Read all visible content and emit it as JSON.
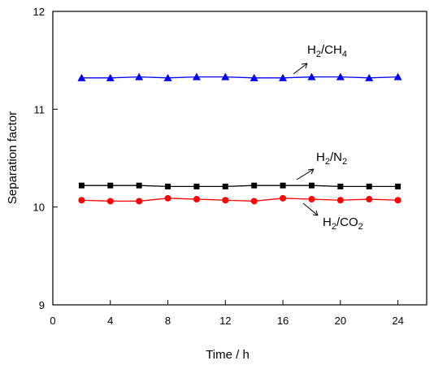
{
  "chart_data": {
    "type": "line",
    "xlabel": "Time / h",
    "ylabel": "Separation factor",
    "xlim": [
      0,
      26
    ],
    "ylim": [
      9,
      12
    ],
    "x_ticks": [
      "0",
      "4",
      "8",
      "12",
      "16",
      "20",
      "24"
    ],
    "y_ticks": [
      "9",
      "10",
      "11",
      "12"
    ],
    "x": [
      2,
      4,
      6,
      8,
      10,
      12,
      14,
      16,
      18,
      20,
      22,
      24
    ],
    "series": [
      {
        "name": "H2/CH4",
        "label_main": "H",
        "label_sub1": "2",
        "label_mid": "/CH",
        "label_sub2": "4",
        "color": "#0000ff",
        "marker": "triangle",
        "values": [
          11.32,
          11.32,
          11.33,
          11.32,
          11.33,
          11.33,
          11.32,
          11.32,
          11.33,
          11.33,
          11.32,
          11.33
        ]
      },
      {
        "name": "H2/N2",
        "label_main": "H",
        "label_sub1": "2",
        "label_mid": "/N",
        "label_sub2": "2",
        "color": "#000000",
        "marker": "square",
        "values": [
          10.22,
          10.22,
          10.22,
          10.21,
          10.21,
          10.21,
          10.22,
          10.22,
          10.22,
          10.21,
          10.21,
          10.21
        ]
      },
      {
        "name": "H2/CO2",
        "label_main": "H",
        "label_sub1": "2",
        "label_mid": "/CO",
        "label_sub2": "2",
        "color": "#ff0000",
        "marker": "circle",
        "values": [
          10.07,
          10.06,
          10.06,
          10.09,
          10.08,
          10.07,
          10.06,
          10.09,
          10.08,
          10.07,
          10.08,
          10.07
        ]
      }
    ],
    "grid": false,
    "legend": "inline labels with arrows"
  }
}
